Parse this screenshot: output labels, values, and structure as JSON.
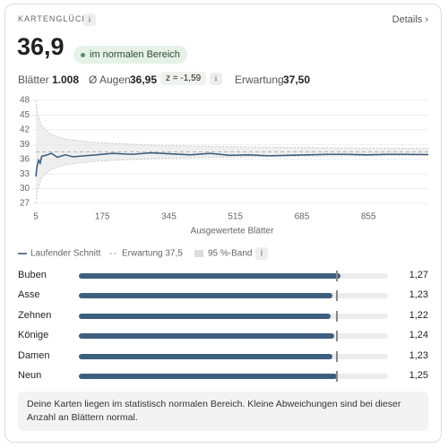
{
  "header": {
    "title": "KARTENGLÜCK",
    "info": "i",
    "link": "Details ›"
  },
  "summary": {
    "value": "36,9",
    "badge": "im normalen Bereich"
  },
  "stats": {
    "sheets_label": "Blätter",
    "sheets": "1.008",
    "avg_label": "Ø Augen",
    "avg": "36,95",
    "z": "z = -1,59",
    "info": "i",
    "expected_label": "Erwartung",
    "expected": "37,50"
  },
  "chart_data": {
    "type": "line",
    "x_label": "Ausgewertete Blätter",
    "x": [
      5,
      8,
      12,
      16,
      20,
      30,
      45,
      60,
      80,
      100,
      130,
      160,
      200,
      250,
      300,
      350,
      400,
      450,
      500,
      550,
      600,
      650,
      700,
      750,
      800,
      850,
      900,
      950,
      1008
    ],
    "series": [
      {
        "name": "Laufender Schnitt",
        "color": "#3d5f7e",
        "values": [
          32.5,
          34.5,
          35.8,
          35.2,
          36.6,
          36.8,
          37.2,
          36.4,
          36.9,
          36.5,
          36.7,
          36.9,
          37.2,
          37.0,
          37.3,
          37.1,
          36.9,
          37.2,
          36.8,
          36.9,
          36.7,
          36.8,
          36.9,
          37.0,
          37.0,
          36.9,
          37.0,
          37.0,
          36.95
        ]
      }
    ],
    "expected": {
      "name": "Erwartung 37,5",
      "value": 37.5,
      "color": "#b5b5b5"
    },
    "band": {
      "name": "95 %-Band",
      "color": "#e8e8e8",
      "x": [
        5,
        10,
        20,
        40,
        80,
        160,
        320,
        640,
        1008
      ],
      "upper": [
        48,
        44.9,
        42.8,
        41.2,
        40.1,
        39.4,
        38.8,
        38.4,
        38.2
      ],
      "lower": [
        27,
        30.1,
        32.2,
        33.8,
        34.9,
        35.6,
        36.2,
        36.6,
        36.8
      ]
    },
    "legend_info": "i",
    "xlim": [
      5,
      1008
    ],
    "ylim": [
      27,
      48
    ],
    "xticks": [
      5,
      175,
      345,
      515,
      685,
      855
    ],
    "yticks": [
      27,
      30,
      33,
      36,
      39,
      42,
      45,
      48
    ],
    "grid": true
  },
  "bars": {
    "type": "bar",
    "orientation": "horizontal",
    "categories": [
      "Buben",
      "Asse",
      "Zehnen",
      "Könige",
      "Damen",
      "Neun"
    ],
    "values": [
      1.27,
      1.23,
      1.22,
      1.24,
      1.23,
      1.25
    ],
    "value_labels": [
      "1,27",
      "1,23",
      "1,22",
      "1,24",
      "1,23",
      "1,25"
    ],
    "marker": 1.25,
    "xlim": [
      0,
      1.5
    ],
    "color": "#3d5f7e"
  },
  "note": "Deine Karten liegen im statistisch normalen Bereich. Kleine Abweichungen sind bei dieser Anzahl an Blättern normal."
}
